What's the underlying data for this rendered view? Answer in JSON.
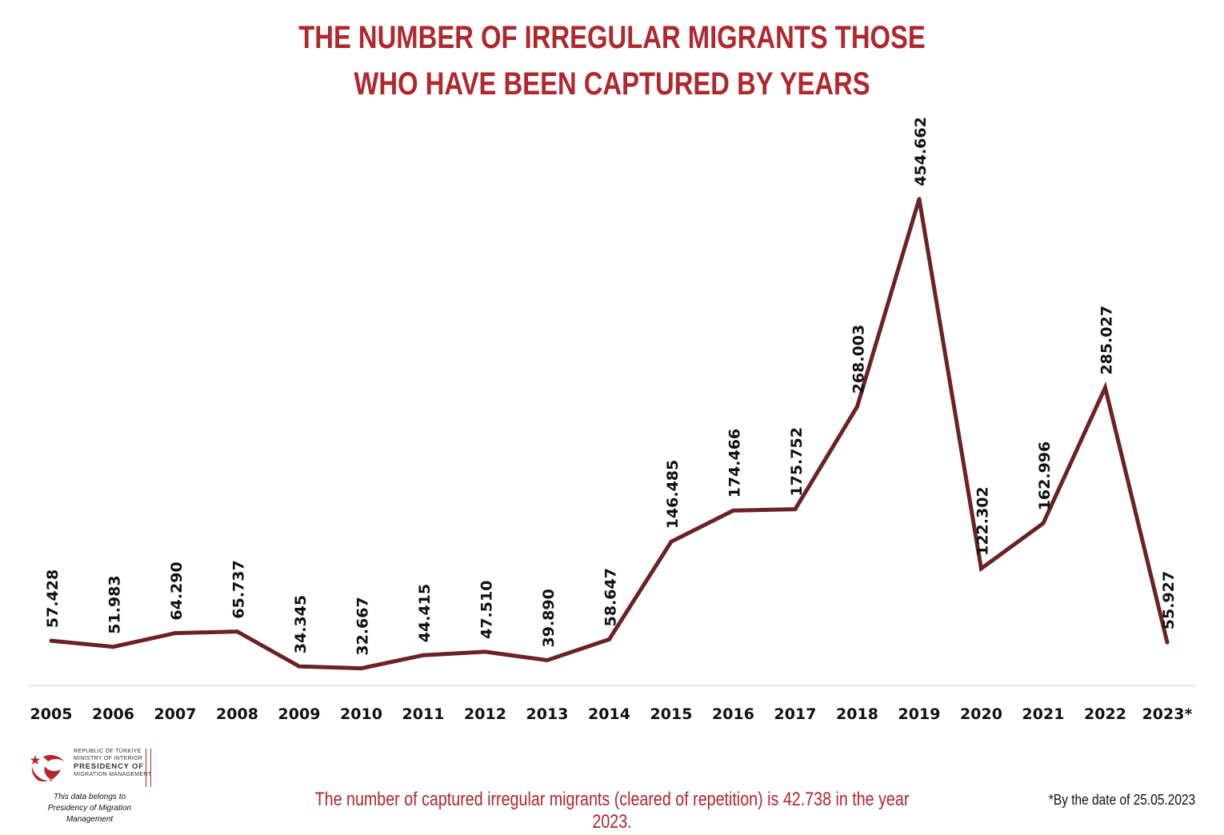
{
  "header": {
    "title_line1": "THE NUMBER OF IRREGULAR MIGRANTS THOSE",
    "title_line2": "WHO HAVE BEEN CAPTURED BY YEARS"
  },
  "colors": {
    "accent": "#b0272d",
    "line": "#6b2226",
    "text": "#111111",
    "axis": "#dddddd"
  },
  "chart_data": {
    "type": "line",
    "title": "THE NUMBER OF IRREGULAR MIGRANTS THOSE WHO HAVE BEEN CAPTURED BY YEARS",
    "xlabel": "",
    "ylabel": "",
    "ylim": [
      0,
      500000
    ],
    "grid": false,
    "legend": "none",
    "categories": [
      "2005",
      "2006",
      "2007",
      "2008",
      "2009",
      "2010",
      "2011",
      "2012",
      "2013",
      "2014",
      "2015",
      "2016",
      "2017",
      "2018",
      "2019",
      "2020",
      "2021",
      "2022",
      "2023*"
    ],
    "values": [
      57428,
      51983,
      64290,
      65737,
      34345,
      32667,
      44415,
      47510,
      39890,
      58647,
      146485,
      174466,
      175752,
      268003,
      454662,
      122302,
      162996,
      285027,
      55927
    ],
    "data_labels": [
      "57.428",
      "51.983",
      "64.290",
      "65.737",
      "34.345",
      "32.667",
      "44.415",
      "47.510",
      "39.890",
      "58.647",
      "146.485",
      "174.466",
      "175.752",
      "268.003",
      "454.662",
      "122.302",
      "162.996",
      "285.027",
      "55.927"
    ]
  },
  "logo": {
    "line1": "REPUBLIC OF TÜRKIYE",
    "line2": "MINISTRY OF INTERIOR",
    "line3": "PRESIDENCY OF",
    "line4": "MIGRATION MANAGEMENT"
  },
  "source": {
    "line1": "This data belongs to",
    "line2": "Presidency of Migration Management"
  },
  "footnote": "The number of captured irregular migrants (cleared of repetition) is 42.738 in the year 2023.",
  "date_note": "*By the date of 25.05.2023"
}
